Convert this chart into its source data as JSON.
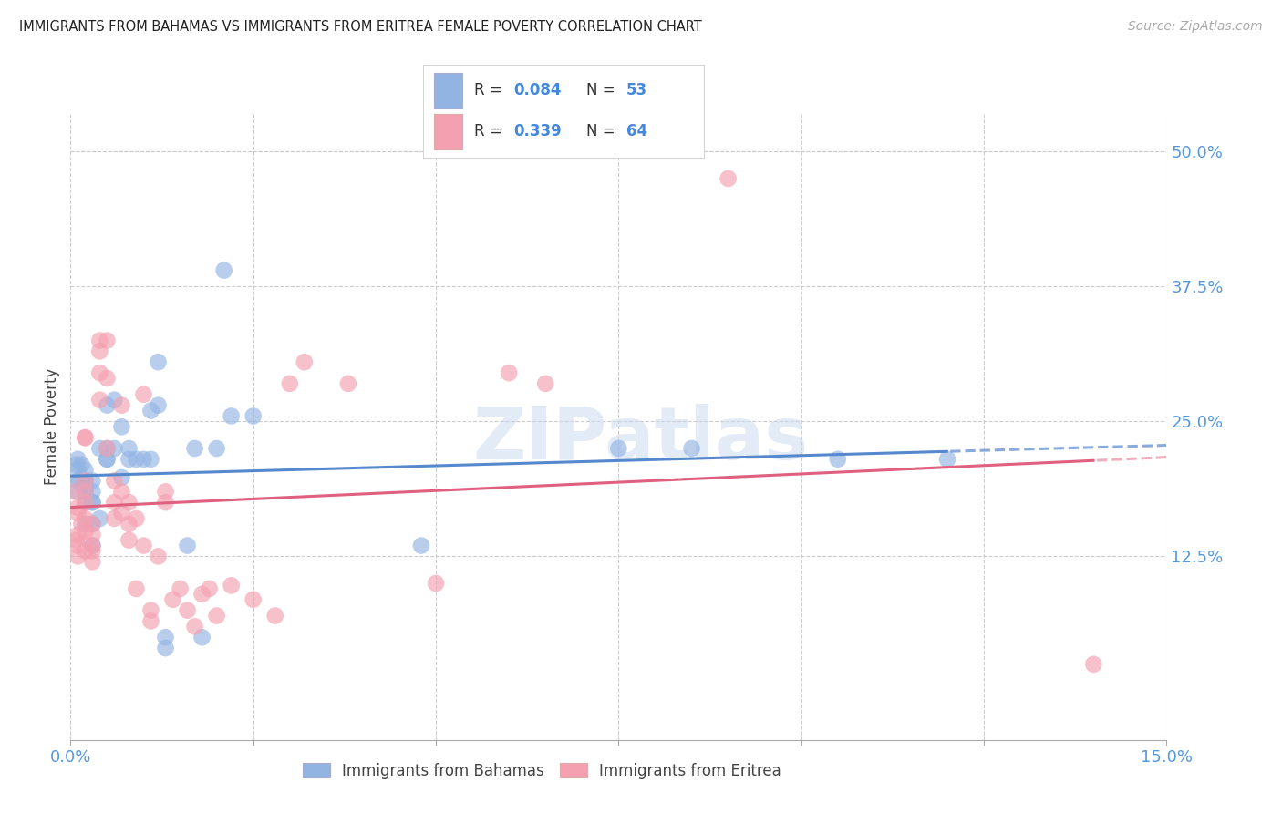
{
  "title": "IMMIGRANTS FROM BAHAMAS VS IMMIGRANTS FROM ERITREA FEMALE POVERTY CORRELATION CHART",
  "source": "Source: ZipAtlas.com",
  "ylabel": "Female Poverty",
  "xlim": [
    0.0,
    0.15
  ],
  "ylim": [
    -0.045,
    0.535
  ],
  "yticks": [
    0.125,
    0.25,
    0.375,
    0.5
  ],
  "yticklabels": [
    "12.5%",
    "25.0%",
    "37.5%",
    "50.0%"
  ],
  "xticks": [
    0.0,
    0.025,
    0.05,
    0.075,
    0.1,
    0.125,
    0.15
  ],
  "xticklabels_show": [
    "0.0%",
    "",
    "",
    "",
    "",
    "",
    "15.0%"
  ],
  "bahamas_color": "#92b4e3",
  "eritrea_color": "#f4a0b0",
  "bahamas_line_color": "#5588cc",
  "eritrea_line_color": "#e06080",
  "background_color": "#ffffff",
  "grid_color": "#cccccc",
  "watermark": "ZIPatlas",
  "legend_R_bahamas": "R = 0.084",
  "legend_N_bahamas": "N = 53",
  "legend_R_eritrea": "R = 0.339",
  "legend_N_eritrea": "N = 64",
  "bahamas_x": [
    0.0008,
    0.001,
    0.001,
    0.001,
    0.001,
    0.0012,
    0.0015,
    0.002,
    0.002,
    0.002,
    0.002,
    0.002,
    0.002,
    0.002,
    0.002,
    0.003,
    0.003,
    0.003,
    0.003,
    0.003,
    0.003,
    0.004,
    0.004,
    0.005,
    0.005,
    0.005,
    0.005,
    0.006,
    0.006,
    0.007,
    0.007,
    0.008,
    0.008,
    0.009,
    0.01,
    0.011,
    0.011,
    0.012,
    0.012,
    0.013,
    0.013,
    0.016,
    0.017,
    0.018,
    0.02,
    0.021,
    0.022,
    0.025,
    0.048,
    0.075,
    0.085,
    0.105,
    0.12
  ],
  "bahamas_y": [
    0.21,
    0.215,
    0.205,
    0.195,
    0.185,
    0.195,
    0.21,
    0.205,
    0.195,
    0.19,
    0.185,
    0.175,
    0.155,
    0.185,
    0.195,
    0.195,
    0.185,
    0.175,
    0.155,
    0.175,
    0.135,
    0.16,
    0.225,
    0.215,
    0.265,
    0.225,
    0.215,
    0.225,
    0.27,
    0.245,
    0.198,
    0.225,
    0.215,
    0.215,
    0.215,
    0.26,
    0.215,
    0.265,
    0.305,
    0.04,
    0.05,
    0.135,
    0.225,
    0.05,
    0.225,
    0.39,
    0.255,
    0.255,
    0.135,
    0.225,
    0.225,
    0.215,
    0.215
  ],
  "eritrea_x": [
    0.0005,
    0.0008,
    0.001,
    0.001,
    0.001,
    0.001,
    0.001,
    0.0015,
    0.002,
    0.002,
    0.002,
    0.002,
    0.002,
    0.002,
    0.002,
    0.002,
    0.003,
    0.003,
    0.003,
    0.003,
    0.003,
    0.004,
    0.004,
    0.004,
    0.004,
    0.005,
    0.005,
    0.005,
    0.006,
    0.006,
    0.006,
    0.007,
    0.007,
    0.007,
    0.008,
    0.008,
    0.008,
    0.009,
    0.009,
    0.01,
    0.01,
    0.011,
    0.011,
    0.012,
    0.013,
    0.013,
    0.014,
    0.015,
    0.016,
    0.017,
    0.018,
    0.019,
    0.02,
    0.022,
    0.025,
    0.028,
    0.03,
    0.032,
    0.038,
    0.05,
    0.06,
    0.065,
    0.09,
    0.14
  ],
  "eritrea_y": [
    0.185,
    0.14,
    0.17,
    0.165,
    0.145,
    0.135,
    0.125,
    0.155,
    0.235,
    0.235,
    0.195,
    0.185,
    0.175,
    0.16,
    0.148,
    0.13,
    0.155,
    0.145,
    0.135,
    0.13,
    0.12,
    0.325,
    0.315,
    0.295,
    0.27,
    0.325,
    0.29,
    0.225,
    0.195,
    0.175,
    0.16,
    0.265,
    0.185,
    0.165,
    0.175,
    0.155,
    0.14,
    0.16,
    0.095,
    0.275,
    0.135,
    0.075,
    0.065,
    0.125,
    0.185,
    0.175,
    0.085,
    0.095,
    0.075,
    0.06,
    0.09,
    0.095,
    0.07,
    0.098,
    0.085,
    0.07,
    0.285,
    0.305,
    0.285,
    0.1,
    0.295,
    0.285,
    0.475,
    0.025
  ]
}
